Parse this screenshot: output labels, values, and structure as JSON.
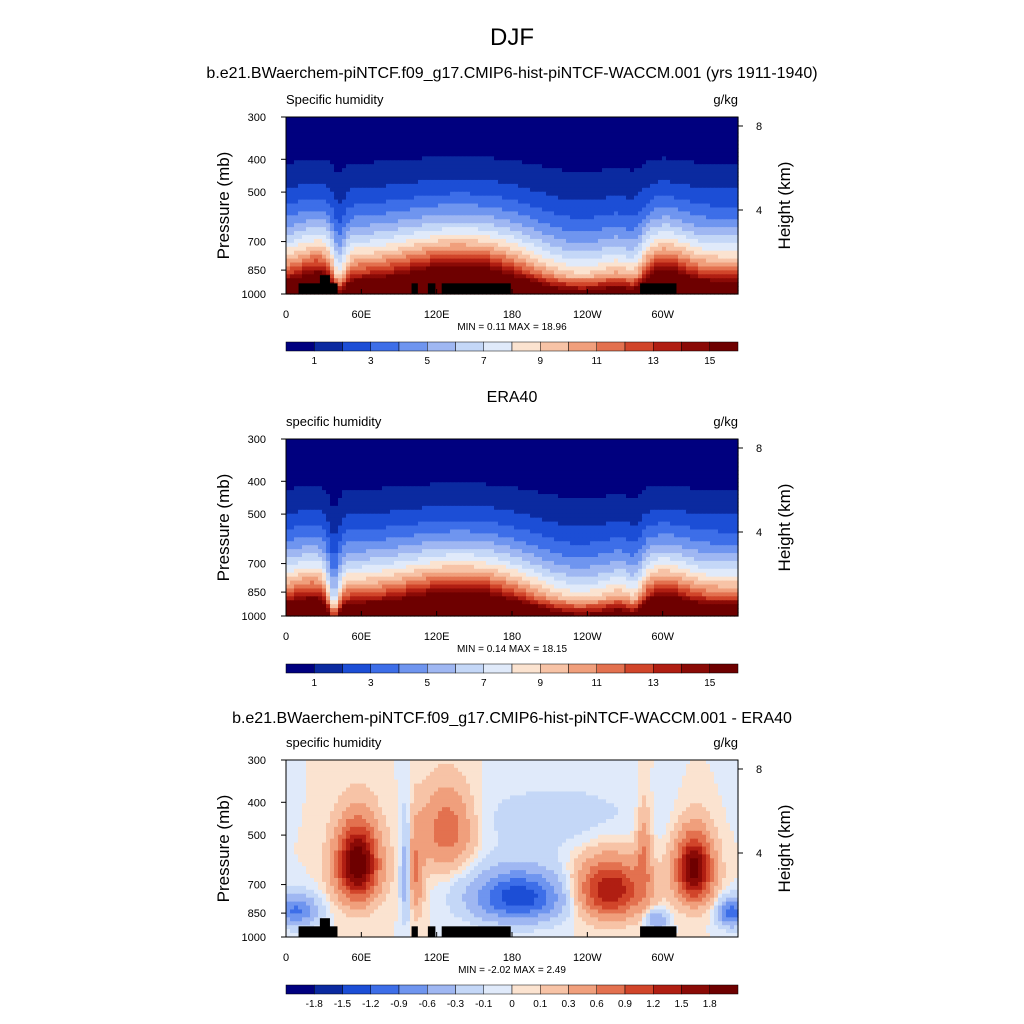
{
  "figure": {
    "title": "DJF",
    "panel_titles": [
      "b.e21.BWaerchem-piNTCF.f09_g17.CMIP6-hist-piNTCF-WACCM.001 (yrs 1911-1940)",
      "ERA40",
      "b.e21.BWaerchem-piNTCF.f09_g17.CMIP6-hist-piNTCF-WACCM.001 - ERA40"
    ]
  },
  "chart_data": [
    {
      "type": "heatmap",
      "title": "b.e21.BWaerchem-piNTCF.f09_g17.CMIP6-hist-piNTCF-WACCM.001 (yrs 1911-1940)",
      "left_label": "Specific humidity",
      "right_label": "g/kg",
      "ylabel": "Pressure (mb)",
      "y2label": "Height (km)",
      "y_ticks": [
        "300",
        "400",
        "500",
        "700",
        "850",
        "1000"
      ],
      "y_tick_values": [
        300,
        400,
        500,
        700,
        850,
        1000
      ],
      "y2_ticks": [
        "8",
        "4"
      ],
      "y2_tick_values": [
        8,
        4
      ],
      "x_ticks": [
        "0",
        "60E",
        "120E",
        "180",
        "120W",
        "60W"
      ],
      "x_tick_values": [
        0,
        60,
        120,
        180,
        240,
        300
      ],
      "xlim": [
        0,
        360
      ],
      "ylim": [
        1000,
        300
      ],
      "stats": "MIN =   0.11  MAX =  18.96",
      "field": "model",
      "colorbar_labels": [
        "1",
        "3",
        "5",
        "7",
        "9",
        "11",
        "13",
        "15"
      ],
      "colorbar_levels": [
        1,
        2,
        3,
        4,
        5,
        6,
        7,
        8,
        9,
        10,
        11,
        12,
        13,
        14,
        15
      ],
      "colorbar_colors": [
        "#00007f",
        "#0b2aa0",
        "#1c4ed6",
        "#3d6ee8",
        "#6f95ef",
        "#9fb7f2",
        "#c4d7f7",
        "#e0eafa",
        "#fbe3d0",
        "#f7c3a6",
        "#f09f7c",
        "#e3714f",
        "#d1452a",
        "#b01e12",
        "#8a0a06",
        "#6e0000"
      ],
      "terrain": [
        {
          "x0": 10,
          "x1": 41,
          "p": 930
        },
        {
          "x0": 27,
          "x1": 35,
          "p": 880
        },
        {
          "x0": 100,
          "x1": 105,
          "p": 930
        },
        {
          "x0": 113,
          "x1": 119,
          "p": 930
        },
        {
          "x0": 124,
          "x1": 179,
          "p": 930
        },
        {
          "x0": 282,
          "x1": 311,
          "p": 930
        }
      ]
    },
    {
      "type": "heatmap",
      "title": "ERA40",
      "left_label": "specific humidity",
      "right_label": "g/kg",
      "ylabel": "Pressure (mb)",
      "y2label": "Height (km)",
      "y_ticks": [
        "300",
        "400",
        "500",
        "700",
        "850",
        "1000"
      ],
      "y_tick_values": [
        300,
        400,
        500,
        700,
        850,
        1000
      ],
      "y2_ticks": [
        "8",
        "4"
      ],
      "y2_tick_values": [
        8,
        4
      ],
      "x_ticks": [
        "0",
        "60E",
        "120E",
        "180",
        "120W",
        "60W"
      ],
      "x_tick_values": [
        0,
        60,
        120,
        180,
        240,
        300
      ],
      "xlim": [
        0,
        360
      ],
      "ylim": [
        1000,
        300
      ],
      "stats": "MIN =   0.14  MAX =  18.15",
      "field": "obs",
      "colorbar_labels": [
        "1",
        "3",
        "5",
        "7",
        "9",
        "11",
        "13",
        "15"
      ],
      "colorbar_levels": [
        1,
        2,
        3,
        4,
        5,
        6,
        7,
        8,
        9,
        10,
        11,
        12,
        13,
        14,
        15
      ],
      "colorbar_colors": [
        "#00007f",
        "#0b2aa0",
        "#1c4ed6",
        "#3d6ee8",
        "#6f95ef",
        "#9fb7f2",
        "#c4d7f7",
        "#e0eafa",
        "#fbe3d0",
        "#f7c3a6",
        "#f09f7c",
        "#e3714f",
        "#d1452a",
        "#b01e12",
        "#8a0a06",
        "#6e0000"
      ],
      "terrain": []
    },
    {
      "type": "heatmap",
      "title": "b.e21.BWaerchem-piNTCF.f09_g17.CMIP6-hist-piNTCF-WACCM.001 - ERA40",
      "left_label": "specific humidity",
      "right_label": "g/kg",
      "ylabel": "Pressure (mb)",
      "y2label": "Height (km)",
      "y_ticks": [
        "300",
        "400",
        "500",
        "700",
        "850",
        "1000"
      ],
      "y_tick_values": [
        300,
        400,
        500,
        700,
        850,
        1000
      ],
      "y2_ticks": [
        "8",
        "4"
      ],
      "y2_tick_values": [
        8,
        4
      ],
      "x_ticks": [
        "0",
        "60E",
        "120E",
        "180",
        "120W",
        "60W"
      ],
      "x_tick_values": [
        0,
        60,
        120,
        180,
        240,
        300
      ],
      "xlim": [
        0,
        360
      ],
      "ylim": [
        1000,
        300
      ],
      "stats": "MIN =  -2.02  MAX =   2.49",
      "field": "diff",
      "colorbar_labels": [
        "-1.8",
        "-1.5",
        "-1.2",
        "-0.9",
        "-0.6",
        "-0.3",
        "-0.1",
        "0",
        "0.1",
        "0.3",
        "0.6",
        "0.9",
        "1.2",
        "1.5",
        "1.8"
      ],
      "colorbar_levels": [
        -1.8,
        -1.5,
        -1.2,
        -0.9,
        -0.6,
        -0.3,
        -0.1,
        0,
        0.1,
        0.3,
        0.6,
        0.9,
        1.2,
        1.5,
        1.8
      ],
      "colorbar_colors": [
        "#00007f",
        "#0b2aa0",
        "#1c4ed6",
        "#3d6ee8",
        "#6f95ef",
        "#9fb7f2",
        "#c4d7f7",
        "#e0eafa",
        "#fbe3d0",
        "#f7c3a6",
        "#f09f7c",
        "#e3714f",
        "#d1452a",
        "#b01e12",
        "#8a0a06",
        "#6e0000"
      ],
      "terrain": [
        {
          "x0": 10,
          "x1": 41,
          "p": 930
        },
        {
          "x0": 27,
          "x1": 35,
          "p": 880
        },
        {
          "x0": 100,
          "x1": 105,
          "p": 930
        },
        {
          "x0": 113,
          "x1": 119,
          "p": 930
        },
        {
          "x0": 124,
          "x1": 179,
          "p": 930
        },
        {
          "x0": 282,
          "x1": 311,
          "p": 930
        }
      ]
    }
  ]
}
